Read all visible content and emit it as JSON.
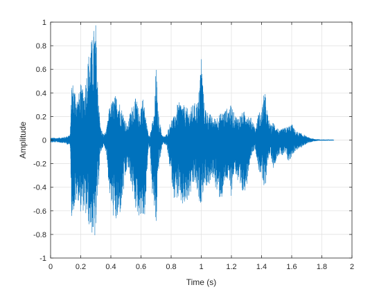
{
  "chart_data": {
    "type": "line",
    "title": "",
    "xlabel": "Time (s)",
    "ylabel": "Amplitude",
    "xlim": [
      0,
      2
    ],
    "ylim": [
      -1,
      1
    ],
    "xticks": [
      0,
      0.2,
      0.4,
      0.6,
      0.8,
      1,
      1.2,
      1.4,
      1.6,
      1.8,
      2
    ],
    "xtick_labels": [
      "0",
      "0.2",
      "0.4",
      "0.6",
      "0.8",
      "1",
      "1.2",
      "1.4",
      "1.6",
      "1.8",
      "2"
    ],
    "yticks": [
      -1,
      -0.8,
      -0.6,
      -0.4,
      -0.2,
      0,
      0.2,
      0.4,
      0.6,
      0.8,
      1
    ],
    "ytick_labels": [
      "-1",
      "-0.8",
      "-0.6",
      "-0.4",
      "-0.2",
      "0",
      "0.2",
      "0.4",
      "0.6",
      "0.8",
      "1"
    ],
    "grid": true,
    "line_color": "#0072BD",
    "series": [
      {
        "envelope": {
          "t": [
            0,
            0.05,
            0.1,
            0.13,
            0.14,
            0.16,
            0.18,
            0.2,
            0.22,
            0.24,
            0.26,
            0.28,
            0.29,
            0.3,
            0.31,
            0.33,
            0.35,
            0.37,
            0.39,
            0.41,
            0.43,
            0.45,
            0.47,
            0.49,
            0.51,
            0.53,
            0.55,
            0.57,
            0.59,
            0.6,
            0.61,
            0.62,
            0.63,
            0.64,
            0.65,
            0.66,
            0.67,
            0.68,
            0.69,
            0.7,
            0.71,
            0.72,
            0.73,
            0.74,
            0.75,
            0.77,
            0.8,
            0.82,
            0.84,
            0.86,
            0.88,
            0.9,
            0.92,
            0.94,
            0.96,
            0.98,
            1.0,
            1.02,
            1.04,
            1.06,
            1.08,
            1.1,
            1.12,
            1.14,
            1.16,
            1.18,
            1.2,
            1.22,
            1.24,
            1.26,
            1.28,
            1.3,
            1.32,
            1.34,
            1.36,
            1.38,
            1.4,
            1.42,
            1.44,
            1.46,
            1.48,
            1.5,
            1.52,
            1.54,
            1.56,
            1.58,
            1.6,
            1.62,
            1.64,
            1.66,
            1.68,
            1.7,
            1.72,
            1.75,
            1.8,
            1.85,
            1.88
          ],
          "max": [
            0.02,
            0.02,
            0.03,
            0.05,
            0.52,
            0.45,
            0.35,
            0.48,
            0.4,
            0.6,
            0.82,
            0.88,
            0.98,
            1.0,
            0.6,
            0.12,
            0.05,
            0.08,
            0.28,
            0.34,
            0.38,
            0.36,
            0.28,
            0.2,
            0.12,
            0.25,
            0.34,
            0.36,
            0.2,
            0.32,
            0.38,
            0.32,
            0.22,
            0.12,
            0.05,
            0.06,
            0.12,
            0.18,
            0.24,
            0.7,
            0.3,
            0.18,
            0.12,
            0.05,
            0.03,
            0.05,
            0.18,
            0.2,
            0.3,
            0.33,
            0.3,
            0.28,
            0.25,
            0.3,
            0.32,
            0.34,
            0.75,
            0.3,
            0.25,
            0.22,
            0.18,
            0.2,
            0.22,
            0.24,
            0.26,
            0.28,
            0.3,
            0.22,
            0.2,
            0.22,
            0.24,
            0.26,
            0.2,
            0.18,
            0.1,
            0.24,
            0.25,
            0.44,
            0.22,
            0.12,
            0.16,
            0.12,
            0.08,
            0.1,
            0.11,
            0.12,
            0.14,
            0.09,
            0.07,
            0.06,
            0.05,
            0.03,
            0.02,
            0.01,
            0.005,
            0.005,
            0.004
          ],
          "min": [
            -0.02,
            -0.02,
            -0.03,
            -0.05,
            -0.65,
            -0.58,
            -0.5,
            -0.62,
            -0.6,
            -0.68,
            -0.75,
            -0.82,
            -0.85,
            -0.84,
            -0.55,
            -0.12,
            -0.05,
            -0.1,
            -0.45,
            -0.62,
            -0.72,
            -0.7,
            -0.58,
            -0.4,
            -0.22,
            -0.35,
            -0.5,
            -0.62,
            -0.66,
            -0.62,
            -0.7,
            -0.68,
            -0.62,
            -0.3,
            -0.05,
            -0.08,
            -0.42,
            -0.52,
            -0.62,
            -0.8,
            -0.4,
            -0.2,
            -0.15,
            -0.05,
            -0.03,
            -0.05,
            -0.32,
            -0.5,
            -0.5,
            -0.54,
            -0.58,
            -0.56,
            -0.5,
            -0.42,
            -0.36,
            -0.52,
            -0.54,
            -0.38,
            -0.4,
            -0.38,
            -0.3,
            -0.44,
            -0.5,
            -0.5,
            -0.34,
            -0.36,
            -0.48,
            -0.24,
            -0.36,
            -0.5,
            -0.46,
            -0.4,
            -0.2,
            -0.1,
            -0.08,
            -0.26,
            -0.3,
            -0.48,
            -0.18,
            -0.12,
            -0.25,
            -0.15,
            -0.12,
            -0.14,
            -0.12,
            -0.2,
            -0.14,
            -0.1,
            -0.08,
            -0.07,
            -0.05,
            -0.03,
            -0.02,
            -0.01,
            -0.005,
            -0.005,
            -0.004
          ]
        }
      }
    ]
  }
}
